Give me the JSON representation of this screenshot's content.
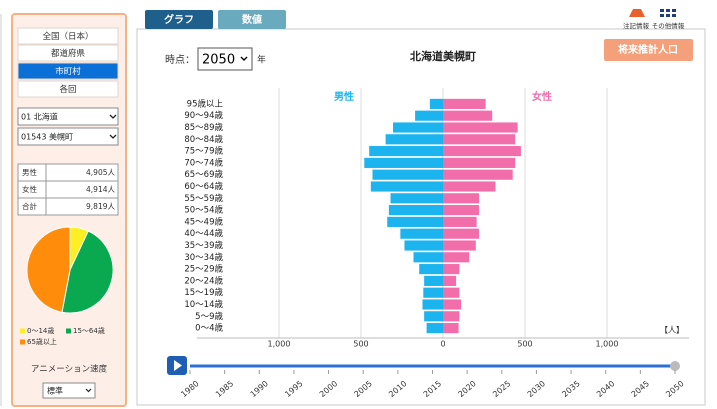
{
  "tabs": [
    "グラフ",
    "数値"
  ],
  "icons": [
    "注記情報",
    "その他情報"
  ],
  "sidebar": {
    "levels": [
      "全国（日本）",
      "都道府県",
      "市町村",
      "各回"
    ],
    "prefecture": "01 北海道",
    "municipality": "01543 美幌町",
    "summary": [
      [
        "男性",
        "4,905人"
      ],
      [
        "女性",
        "4,914人"
      ],
      [
        "合計",
        "9,819人"
      ]
    ],
    "speed_label": "アニメーション速度",
    "speed": "標準"
  },
  "controls": {
    "time_label": "時点：",
    "year": "2050",
    "year_unit": "年",
    "button": "将来推計人口"
  },
  "chart_data": [
    {
      "type": "pyramid",
      "title": "北海道美幌町",
      "categories": [
        "95歳以上",
        "90～94歳",
        "85～89歳",
        "80～84歳",
        "75～79歳",
        "70～74歳",
        "65～69歳",
        "60～64歳",
        "55～59歳",
        "50～54歳",
        "45～49歳",
        "40～44歳",
        "35～39歳",
        "30～34歳",
        "25～29歳",
        "20～24歳",
        "15～19歳",
        "10～14歳",
        "5～9歳",
        "0～4歳"
      ],
      "series": [
        {
          "name": "男性",
          "color": "#1cb4ee",
          "values": [
            80,
            170,
            305,
            350,
            450,
            480,
            430,
            440,
            320,
            330,
            340,
            260,
            235,
            180,
            145,
            115,
            120,
            125,
            115,
            100
          ]
        },
        {
          "name": "女性",
          "color": "#f26eab",
          "values": [
            260,
            300,
            455,
            440,
            475,
            440,
            425,
            320,
            220,
            220,
            205,
            220,
            200,
            160,
            100,
            80,
            100,
            110,
            100,
            95
          ]
        }
      ],
      "xlim": [
        -1500,
        1500
      ],
      "xticks": [
        {
          "value": -1000,
          "label": "1,000"
        },
        {
          "value": -500,
          "label": "500"
        },
        0,
        500,
        {
          "value": 1000,
          "label": "1,000"
        }
      ],
      "grid": true,
      "unit_label": "【人】"
    },
    {
      "type": "pie",
      "categories": [
        "0～14歳",
        "15～64歳",
        "65歳以上"
      ],
      "values": [
        7,
        46,
        47
      ],
      "colors": [
        "#ffee22",
        "#0aa84f",
        "#ff8c0a"
      ]
    }
  ],
  "timeline": {
    "years": [
      1980,
      1985,
      1990,
      1995,
      2000,
      2005,
      2010,
      2015,
      2020,
      2025,
      2030,
      2035,
      2040,
      2045,
      2050
    ]
  }
}
